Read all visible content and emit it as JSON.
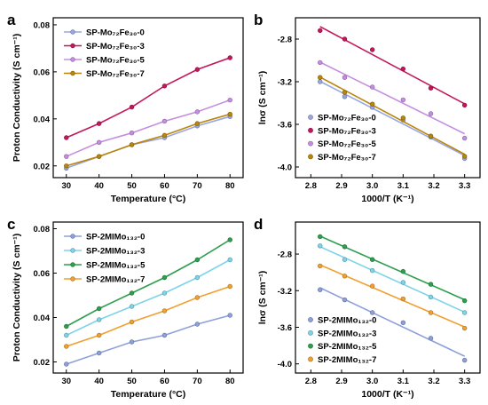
{
  "chart_data": [
    {
      "panel": "a",
      "type": "line",
      "xlabel": "Temperature (°C)",
      "ylabel": "Proton Conductivity (S cm⁻¹)",
      "xlim": [
        26,
        84
      ],
      "ylim": [
        0.015,
        0.083
      ],
      "xticks": [
        30,
        40,
        50,
        60,
        70,
        80
      ],
      "yticks": [
        0.02,
        0.04,
        0.06,
        0.08
      ],
      "legend_position": "top-left",
      "x": [
        30,
        40,
        50,
        60,
        70,
        80
      ],
      "series": [
        {
          "name": "SP-Mo₇₂Fe₃₀-0",
          "color": "#9aa6e0",
          "values": [
            0.019,
            0.024,
            0.029,
            0.032,
            0.037,
            0.041
          ]
        },
        {
          "name": "SP-Mo₇₂Fe₃₀-3",
          "color": "#c2185b",
          "values": [
            0.032,
            0.038,
            0.045,
            0.054,
            0.061,
            0.066
          ]
        },
        {
          "name": "SP-Mo₇₂Fe₃₀-5",
          "color": "#c58ee0",
          "values": [
            0.024,
            0.03,
            0.034,
            0.039,
            0.043,
            0.048
          ]
        },
        {
          "name": "SP-Mo₇₂Fe₃₀-7",
          "color": "#b8860b",
          "values": [
            0.02,
            0.024,
            0.029,
            0.033,
            0.038,
            0.042
          ]
        }
      ]
    },
    {
      "panel": "b",
      "type": "scatter",
      "xlabel": "1000/T (K⁻¹)",
      "ylabel": "lnσ (S cm⁻¹)",
      "xlim": [
        2.75,
        3.35
      ],
      "ylim": [
        -4.1,
        -2.6
      ],
      "xticks": [
        2.8,
        2.9,
        3.0,
        3.1,
        3.2,
        3.3
      ],
      "yticks": [
        -2.8,
        -3.2,
        -3.6,
        -4.0
      ],
      "legend_position": "bottom-left",
      "x": [
        2.83,
        2.91,
        3.0,
        3.1,
        3.19,
        3.3
      ],
      "series": [
        {
          "name": "SP-Mo₇₂Fe₃₀-0",
          "color": "#9aa6e0",
          "values": [
            -3.2,
            -3.34,
            -3.44,
            -3.56,
            -3.72,
            -3.92
          ]
        },
        {
          "name": "SP-Mo₇₂Fe₃₀-3",
          "color": "#c2185b",
          "values": [
            -2.72,
            -2.8,
            -2.9,
            -3.08,
            -3.26,
            -3.42
          ]
        },
        {
          "name": "SP-Mo₇₂Fe₃₀-5",
          "color": "#c58ee0",
          "values": [
            -3.02,
            -3.16,
            -3.25,
            -3.37,
            -3.5,
            -3.73
          ]
        },
        {
          "name": "SP-Mo₇₂Fe₃₀-7",
          "color": "#b8860b",
          "values": [
            -3.16,
            -3.3,
            -3.41,
            -3.54,
            -3.71,
            -3.9
          ]
        }
      ]
    },
    {
      "panel": "c",
      "type": "line",
      "xlabel": "Temperature (°C)",
      "ylabel": "Proton Conductivity (S cm⁻¹)",
      "xlim": [
        26,
        84
      ],
      "ylim": [
        0.015,
        0.083
      ],
      "xticks": [
        30,
        40,
        50,
        60,
        70,
        80
      ],
      "yticks": [
        0.02,
        0.04,
        0.06,
        0.08
      ],
      "legend_position": "top-left",
      "x": [
        30,
        40,
        50,
        60,
        70,
        80
      ],
      "series": [
        {
          "name": "SP-2MIMo₁₃₂-0",
          "color": "#8ea0dc",
          "values": [
            0.019,
            0.024,
            0.029,
            0.032,
            0.037,
            0.041
          ]
        },
        {
          "name": "SP-2MIMo₁₃₂-3",
          "color": "#7fd3e8",
          "values": [
            0.032,
            0.039,
            0.045,
            0.051,
            0.058,
            0.066
          ]
        },
        {
          "name": "SP-2MIMo₁₃₂-5",
          "color": "#2e9e4f",
          "values": [
            0.036,
            0.044,
            0.051,
            0.058,
            0.066,
            0.075
          ]
        },
        {
          "name": "SP-2MIMo₁₃₂-7",
          "color": "#f0a030",
          "values": [
            0.027,
            0.032,
            0.038,
            0.043,
            0.049,
            0.054
          ]
        }
      ]
    },
    {
      "panel": "d",
      "type": "scatter",
      "xlabel": "1000/T (K⁻¹)",
      "ylabel": "lnσ (S cm⁻¹)",
      "xlim": [
        2.75,
        3.35
      ],
      "ylim": [
        -4.1,
        -2.45
      ],
      "xticks": [
        2.8,
        2.9,
        3.0,
        3.1,
        3.2,
        3.3
      ],
      "yticks": [
        -2.8,
        -3.2,
        -3.6,
        -4.0
      ],
      "legend_position": "bottom-left",
      "x": [
        2.83,
        2.91,
        3.0,
        3.1,
        3.19,
        3.3
      ],
      "series": [
        {
          "name": "SP-2MIMo₁₃₂-0",
          "color": "#8ea0dc",
          "values": [
            -3.19,
            -3.3,
            -3.44,
            -3.55,
            -3.72,
            -3.96
          ]
        },
        {
          "name": "SP-2MIMo₁₃₂-3",
          "color": "#7fd3e8",
          "values": [
            -2.71,
            -2.86,
            -2.98,
            -3.11,
            -3.27,
            -3.44
          ]
        },
        {
          "name": "SP-2MIMo₁₃₂-5",
          "color": "#2e9e4f",
          "values": [
            -2.61,
            -2.72,
            -2.86,
            -2.99,
            -3.13,
            -3.31
          ]
        },
        {
          "name": "SP-2MIMo₁₃₂-7",
          "color": "#f0a030",
          "values": [
            -2.93,
            -3.04,
            -3.15,
            -3.29,
            -3.44,
            -3.61
          ]
        }
      ]
    }
  ]
}
